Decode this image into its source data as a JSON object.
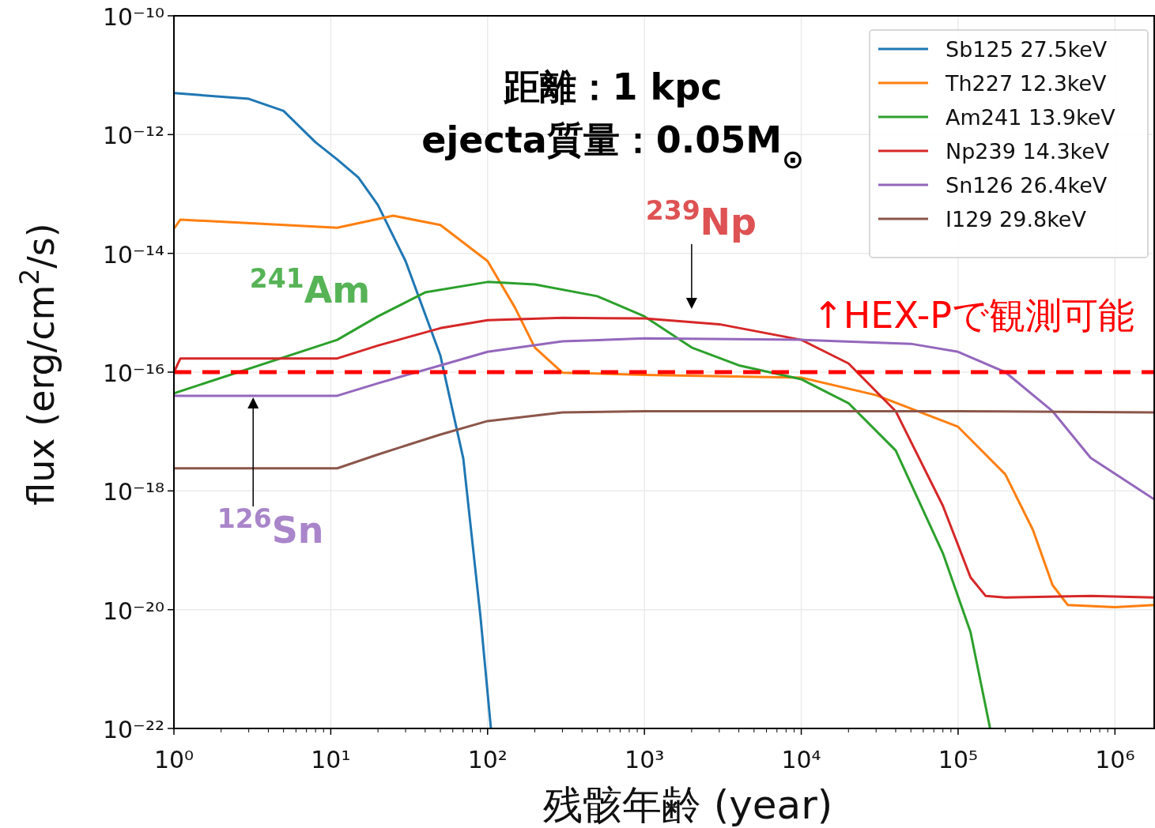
{
  "chart_data": {
    "type": "line",
    "xlabel": "残骸年齢 (year)",
    "ylabel": "flux (erg/cm$^{2}$/s)",
    "log": "xy",
    "xlim": [
      1,
      1780000
    ],
    "ylim": [
      1e-22,
      1e-10
    ],
    "xticks": [
      {
        "value": 1,
        "label": "10⁰"
      },
      {
        "value": 10,
        "label": "10¹"
      },
      {
        "value": 100,
        "label": "10²"
      },
      {
        "value": 1000,
        "label": "10³"
      },
      {
        "value": 10000,
        "label": "10⁴"
      },
      {
        "value": 100000,
        "label": "10⁵"
      },
      {
        "value": 1000000,
        "label": "10⁶"
      }
    ],
    "yticks": [
      {
        "value": 1e-10,
        "label": "10⁻¹⁰"
      },
      {
        "value": 1e-12,
        "label": "10⁻¹²"
      },
      {
        "value": 1e-14,
        "label": "10⁻¹⁴"
      },
      {
        "value": 1e-16,
        "label": "10⁻¹⁶"
      },
      {
        "value": 1e-18,
        "label": "10⁻¹⁸"
      },
      {
        "value": 1e-20,
        "label": "10⁻²⁰"
      },
      {
        "value": 1e-22,
        "label": "10⁻²²"
      }
    ],
    "grid": true,
    "legend": "top right",
    "line_style": "solid",
    "series": [
      {
        "name": "Sb125 27.5keV",
        "color": "#1f77b4",
        "x": [
          1,
          3,
          5,
          8,
          11,
          15,
          20,
          30,
          50,
          70,
          90,
          105
        ],
        "values": [
          5e-12,
          4e-12,
          2.5e-12,
          7.4e-13,
          3.8e-13,
          1.9e-13,
          6.5e-14,
          7.4e-15,
          1.9e-16,
          3.5e-18,
          7.8e-21,
          1e-22
        ]
      },
      {
        "name": "Th227 12.3keV",
        "color": "#ff7f0e",
        "x": [
          1,
          1.1,
          11,
          25,
          50,
          100,
          150,
          200,
          300,
          1000,
          10000,
          30000,
          100000,
          200000,
          300000,
          400000,
          500000,
          1000000,
          1780000
        ],
        "values": [
          2.6e-14,
          3.7e-14,
          2.7e-14,
          4.3e-14,
          3e-14,
          7.4e-15,
          1.2e-15,
          2.6e-16,
          9.8e-17,
          9e-17,
          8.1e-17,
          4.1e-17,
          1.2e-17,
          1.9e-18,
          2.2e-19,
          2.6e-20,
          1.2e-20,
          1.1e-20,
          1.2e-20
        ]
      },
      {
        "name": "Am241 13.9keV",
        "color": "#2ca02c",
        "x": [
          1,
          11,
          20,
          40,
          100,
          200,
          500,
          1000,
          2000,
          4000,
          10000,
          20000,
          40000,
          80000,
          120000,
          160000
        ],
        "values": [
          4.4e-17,
          3.5e-16,
          8.7e-16,
          2.2e-15,
          3.3e-15,
          3e-15,
          1.9e-15,
          8.7e-16,
          2.6e-16,
          1.3e-16,
          7.6e-17,
          3e-17,
          4.8e-18,
          8.9e-20,
          4.2e-21,
          1e-22
        ]
      },
      {
        "name": "Np239 14.3keV",
        "color": "#d62728",
        "x": [
          1,
          1.1,
          11,
          20,
          50,
          100,
          300,
          1000,
          3000,
          10000,
          20000,
          40000,
          80000,
          120000,
          150000,
          200000,
          700000,
          1780000
        ],
        "values": [
          1e-16,
          1.7e-16,
          1.7e-16,
          2.8e-16,
          5.5e-16,
          7.5e-16,
          8.2e-16,
          8e-16,
          6.4e-16,
          3.5e-16,
          1.4e-16,
          2.2e-17,
          5.6e-19,
          3.5e-20,
          1.7e-20,
          1.6e-20,
          1.7e-20,
          1.6e-20
        ]
      },
      {
        "name": "Sn126 26.4keV",
        "color": "#9467bd",
        "x": [
          1,
          11,
          20,
          50,
          100,
          300,
          1000,
          10000,
          50000,
          100000,
          200000,
          400000,
          700000,
          1780000
        ],
        "values": [
          4e-17,
          4e-17,
          6.5e-17,
          1.3e-16,
          2.2e-16,
          3.3e-16,
          3.7e-16,
          3.5e-16,
          3e-16,
          2.2e-16,
          1e-16,
          2.2e-17,
          3.6e-18,
          7.2e-19
        ]
      },
      {
        "name": "I129 29.8keV",
        "color": "#8c564b",
        "x": [
          1,
          11,
          20,
          50,
          100,
          300,
          1000,
          100000,
          1780000
        ],
        "values": [
          2.4e-18,
          2.4e-18,
          4.1e-18,
          8.9e-18,
          1.5e-17,
          2.1e-17,
          2.2e-17,
          2.2e-17,
          2.1e-17
        ]
      }
    ],
    "ref_lines": [
      {
        "axis": "y",
        "value": 1e-16,
        "label": "↑HEX-Pで観測可能",
        "color": "#ff0000",
        "line_style": "dashed"
      }
    ],
    "annotations": [
      "距離：1 kpc",
      "ejecta質量：0.05M$_{⊙}$",
      "$^{241}$Am",
      {
        "text": "$^{239}$Np",
        "x": 2000,
        "y": 8e-16
      },
      {
        "text": "$^{126}$Sn",
        "x": 3.2,
        "y": 4e-17
      }
    ]
  }
}
